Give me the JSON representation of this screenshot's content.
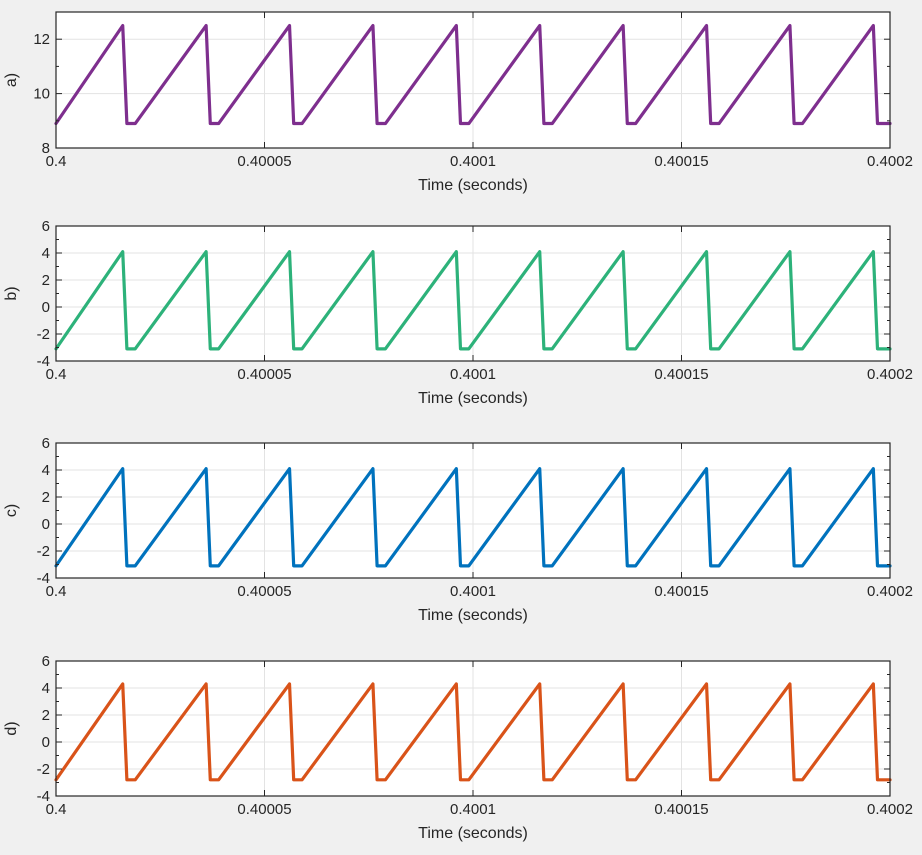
{
  "chart_data": [
    {
      "type": "line",
      "ylabel": "a)",
      "xlabel": "Time (seconds)",
      "xlim": [
        0.4,
        0.4002
      ],
      "ylim": [
        8,
        13
      ],
      "xticks": [
        0.4,
        0.40005,
        0.4001,
        0.40015,
        0.4002
      ],
      "xtick_labels": [
        "0.4",
        "0.40005",
        "0.4001",
        "0.40015",
        "0.4002"
      ],
      "yticks": [
        8,
        10,
        12
      ],
      "yminor_ticks": [
        9,
        11,
        13
      ],
      "ytick_labels": [
        "8",
        "10",
        "12"
      ],
      "grid": true,
      "color": "#7e2f8e",
      "series": [
        {
          "x": [
            0.4,
            0.400016,
            0.400017,
            0.400019,
            0.400036,
            0.400037,
            0.400039,
            0.400056,
            0.400057,
            0.400059,
            0.400076,
            0.400077,
            0.400079,
            0.400096,
            0.400097,
            0.400099,
            0.400116,
            0.400117,
            0.400119,
            0.400136,
            0.400137,
            0.400139,
            0.400156,
            0.400157,
            0.400159,
            0.400176,
            0.400177,
            0.400179,
            0.400196,
            0.400197,
            0.4002
          ],
          "values": [
            8.9,
            12.5,
            8.9,
            8.9,
            12.5,
            8.9,
            8.9,
            12.5,
            8.9,
            8.9,
            12.5,
            8.9,
            8.9,
            12.5,
            8.9,
            8.9,
            12.5,
            8.9,
            8.9,
            12.5,
            8.9,
            8.9,
            12.5,
            8.9,
            8.9,
            12.5,
            8.9,
            8.9,
            12.5,
            8.9,
            8.9
          ]
        }
      ]
    },
    {
      "type": "line",
      "ylabel": "b)",
      "xlabel": "Time (seconds)",
      "xlim": [
        0.4,
        0.4002
      ],
      "ylim": [
        -4,
        6
      ],
      "xticks": [
        0.4,
        0.40005,
        0.4001,
        0.40015,
        0.4002
      ],
      "xtick_labels": [
        "0.4",
        "0.40005",
        "0.4001",
        "0.40015",
        "0.4002"
      ],
      "yticks": [
        -4,
        -2,
        0,
        2,
        4,
        6
      ],
      "yminor_ticks": [
        -3,
        -1,
        1,
        3,
        5
      ],
      "ytick_labels": [
        "-4",
        "-2",
        "0",
        "2",
        "4",
        "6"
      ],
      "grid": true,
      "color": "#2db27a",
      "series": [
        {
          "x": [
            0.4,
            0.400016,
            0.400017,
            0.400019,
            0.400036,
            0.400037,
            0.400039,
            0.400056,
            0.400057,
            0.400059,
            0.400076,
            0.400077,
            0.400079,
            0.400096,
            0.400097,
            0.400099,
            0.400116,
            0.400117,
            0.400119,
            0.400136,
            0.400137,
            0.400139,
            0.400156,
            0.400157,
            0.400159,
            0.400176,
            0.400177,
            0.400179,
            0.400196,
            0.400197,
            0.4002
          ],
          "values": [
            -3.1,
            4.1,
            -3.1,
            -3.1,
            4.1,
            -3.1,
            -3.1,
            4.1,
            -3.1,
            -3.1,
            4.1,
            -3.1,
            -3.1,
            4.1,
            -3.1,
            -3.1,
            4.1,
            -3.1,
            -3.1,
            4.1,
            -3.1,
            -3.1,
            4.1,
            -3.1,
            -3.1,
            4.1,
            -3.1,
            -3.1,
            4.1,
            -3.1,
            -3.1
          ]
        }
      ]
    },
    {
      "type": "line",
      "ylabel": "c)",
      "xlabel": "Time (seconds)",
      "xlim": [
        0.4,
        0.4002
      ],
      "ylim": [
        -4,
        6
      ],
      "xticks": [
        0.4,
        0.40005,
        0.4001,
        0.40015,
        0.4002
      ],
      "xtick_labels": [
        "0.4",
        "0.40005",
        "0.4001",
        "0.40015",
        "0.4002"
      ],
      "yticks": [
        -4,
        -2,
        0,
        2,
        4,
        6
      ],
      "yminor_ticks": [
        -3,
        -1,
        1,
        3,
        5
      ],
      "ytick_labels": [
        "-4",
        "-2",
        "0",
        "2",
        "4",
        "6"
      ],
      "grid": true,
      "color": "#0072bd",
      "series": [
        {
          "x": [
            0.4,
            0.400016,
            0.400017,
            0.400019,
            0.400036,
            0.400037,
            0.400039,
            0.400056,
            0.400057,
            0.400059,
            0.400076,
            0.400077,
            0.400079,
            0.400096,
            0.400097,
            0.400099,
            0.400116,
            0.400117,
            0.400119,
            0.400136,
            0.400137,
            0.400139,
            0.400156,
            0.400157,
            0.400159,
            0.400176,
            0.400177,
            0.400179,
            0.400196,
            0.400197,
            0.4002
          ],
          "values": [
            -3.1,
            4.1,
            -3.1,
            -3.1,
            4.1,
            -3.1,
            -3.1,
            4.1,
            -3.1,
            -3.1,
            4.1,
            -3.1,
            -3.1,
            4.1,
            -3.1,
            -3.1,
            4.1,
            -3.1,
            -3.1,
            4.1,
            -3.1,
            -3.1,
            4.1,
            -3.1,
            -3.1,
            4.1,
            -3.1,
            -3.1,
            4.1,
            -3.1,
            -3.1
          ]
        }
      ]
    },
    {
      "type": "line",
      "ylabel": "d)",
      "xlabel": "Time (seconds)",
      "xlim": [
        0.4,
        0.4002
      ],
      "ylim": [
        -4,
        6
      ],
      "xticks": [
        0.4,
        0.40005,
        0.4001,
        0.40015,
        0.4002
      ],
      "xtick_labels": [
        "0.4",
        "0.40005",
        "0.4001",
        "0.40015",
        "0.4002"
      ],
      "yticks": [
        -4,
        -2,
        0,
        2,
        4,
        6
      ],
      "yminor_ticks": [
        -3,
        -1,
        1,
        3,
        5
      ],
      "ytick_labels": [
        "-4",
        "-2",
        "0",
        "2",
        "4",
        "6"
      ],
      "grid": true,
      "color": "#d95319",
      "series": [
        {
          "x": [
            0.4,
            0.400016,
            0.400017,
            0.400019,
            0.400036,
            0.400037,
            0.400039,
            0.400056,
            0.400057,
            0.400059,
            0.400076,
            0.400077,
            0.400079,
            0.400096,
            0.400097,
            0.400099,
            0.400116,
            0.400117,
            0.400119,
            0.400136,
            0.400137,
            0.400139,
            0.400156,
            0.400157,
            0.400159,
            0.400176,
            0.400177,
            0.400179,
            0.400196,
            0.400197,
            0.4002
          ],
          "values": [
            -2.8,
            4.3,
            -2.8,
            -2.8,
            4.3,
            -2.8,
            -2.8,
            4.3,
            -2.8,
            -2.8,
            4.3,
            -2.8,
            -2.8,
            4.3,
            -2.8,
            -2.8,
            4.3,
            -2.8,
            -2.8,
            4.3,
            -2.8,
            -2.8,
            4.3,
            -2.8,
            -2.8,
            4.3,
            -2.8,
            -2.8,
            4.3,
            -2.8,
            -2.8
          ]
        }
      ]
    }
  ]
}
